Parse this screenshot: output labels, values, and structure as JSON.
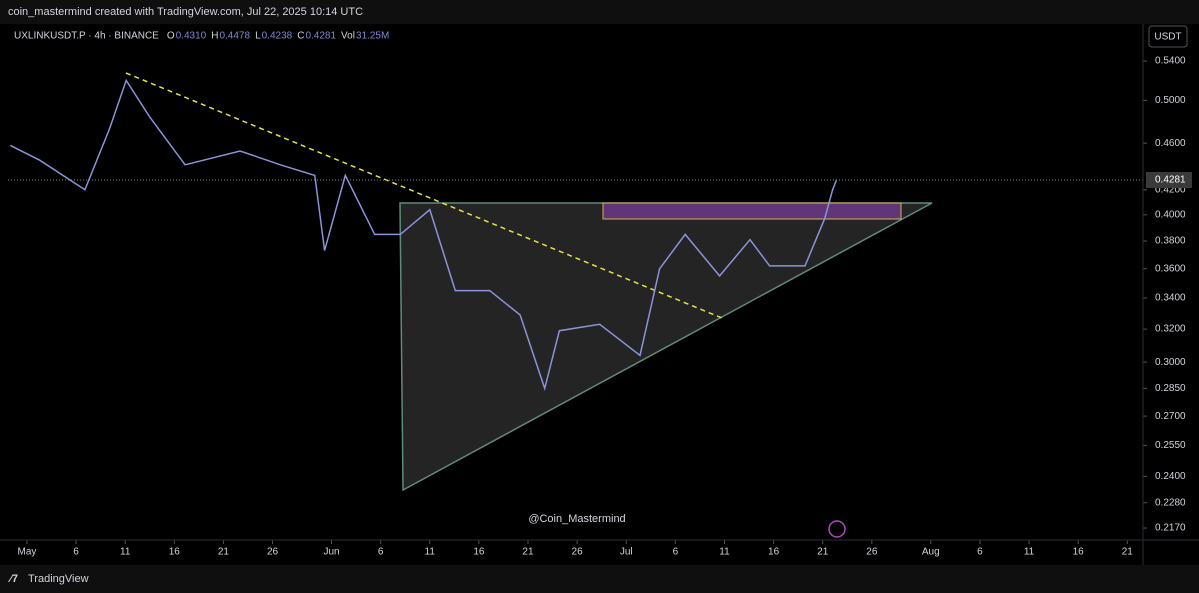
{
  "header": {
    "title": "coin_mastermind created with TradingView.com, Jul 22, 2025 10:14 UTC"
  },
  "footer": {
    "brand": "TradingView"
  },
  "chart_data": {
    "type": "line",
    "symbol": "UXLINKUSDT.P · 4h · BINANCE",
    "ohlc": [
      {
        "label": "O",
        "value": "0.4310"
      },
      {
        "label": "H",
        "value": "0.4478"
      },
      {
        "label": "L",
        "value": "0.4238"
      },
      {
        "label": "C",
        "value": "0.4281"
      },
      {
        "label": "Vol",
        "value": "31.25M"
      }
    ],
    "currency": "USDT",
    "watermark": "@Coin_Mastermind",
    "log_scale": true,
    "series": [
      {
        "name": "UXLINKUSDT.P",
        "color": "#8c93d8",
        "x": [
          -1.7,
          1.3,
          5.9,
          8.4,
          10.1,
          12.5,
          16.1,
          21.7,
          25.8,
          29.3,
          30.3,
          32.4,
          35.4,
          38.0,
          41.0,
          43.6,
          47.1,
          50.2,
          52.7,
          54.2,
          58.3,
          62.4,
          64.4,
          67.0,
          70.5,
          73.6,
          75.6,
          79.2,
          81.2,
          82.0,
          82.4
        ],
        "values": [
          0.458,
          0.445,
          0.42,
          0.473,
          0.52,
          0.484,
          0.441,
          0.453,
          0.441,
          0.432,
          0.373,
          0.432,
          0.385,
          0.385,
          0.404,
          0.345,
          0.345,
          0.329,
          0.285,
          0.319,
          0.323,
          0.304,
          0.36,
          0.385,
          0.355,
          0.381,
          0.362,
          0.362,
          0.397,
          0.42,
          0.4281
        ]
      }
    ],
    "last_price": {
      "value": 0.4281,
      "label": "0.4281"
    },
    "xlim": [
      -1.93,
      113.6
    ],
    "ylim": [
      0.212,
      0.576
    ],
    "xticks": [
      {
        "value": 0,
        "label": "May"
      },
      {
        "value": 5,
        "label": "6"
      },
      {
        "value": 10,
        "label": "11"
      },
      {
        "value": 15,
        "label": "16"
      },
      {
        "value": 20,
        "label": "21"
      },
      {
        "value": 25,
        "label": "26"
      },
      {
        "value": 31,
        "label": "Jun"
      },
      {
        "value": 36,
        "label": "6"
      },
      {
        "value": 41,
        "label": "11"
      },
      {
        "value": 46,
        "label": "16"
      },
      {
        "value": 51,
        "label": "21"
      },
      {
        "value": 56,
        "label": "26"
      },
      {
        "value": 61,
        "label": "Jul"
      },
      {
        "value": 66,
        "label": "6"
      },
      {
        "value": 71,
        "label": "11"
      },
      {
        "value": 76,
        "label": "16"
      },
      {
        "value": 81,
        "label": "21"
      },
      {
        "value": 86,
        "label": "26"
      },
      {
        "value": 92,
        "label": "Aug"
      },
      {
        "value": 97,
        "label": "6"
      },
      {
        "value": 102,
        "label": "11"
      },
      {
        "value": 107,
        "label": "16"
      },
      {
        "value": 112,
        "label": "21"
      }
    ],
    "yticks": [
      {
        "value": 0.54,
        "label": "0.5400"
      },
      {
        "value": 0.5,
        "label": "0.5000"
      },
      {
        "value": 0.46,
        "label": "0.4600"
      },
      {
        "value": 0.42,
        "label": "0.4200"
      },
      {
        "value": 0.4,
        "label": "0.4000"
      },
      {
        "value": 0.38,
        "label": "0.3800"
      },
      {
        "value": 0.36,
        "label": "0.3600"
      },
      {
        "value": 0.34,
        "label": "0.3400"
      },
      {
        "value": 0.32,
        "label": "0.3200"
      },
      {
        "value": 0.3,
        "label": "0.3000"
      },
      {
        "value": 0.285,
        "label": "0.2850"
      },
      {
        "value": 0.27,
        "label": "0.2700"
      },
      {
        "value": 0.255,
        "label": "0.2550"
      },
      {
        "value": 0.24,
        "label": "0.2400"
      },
      {
        "value": 0.228,
        "label": "0.2280"
      },
      {
        "value": 0.217,
        "label": "0.2170"
      }
    ]
  }
}
